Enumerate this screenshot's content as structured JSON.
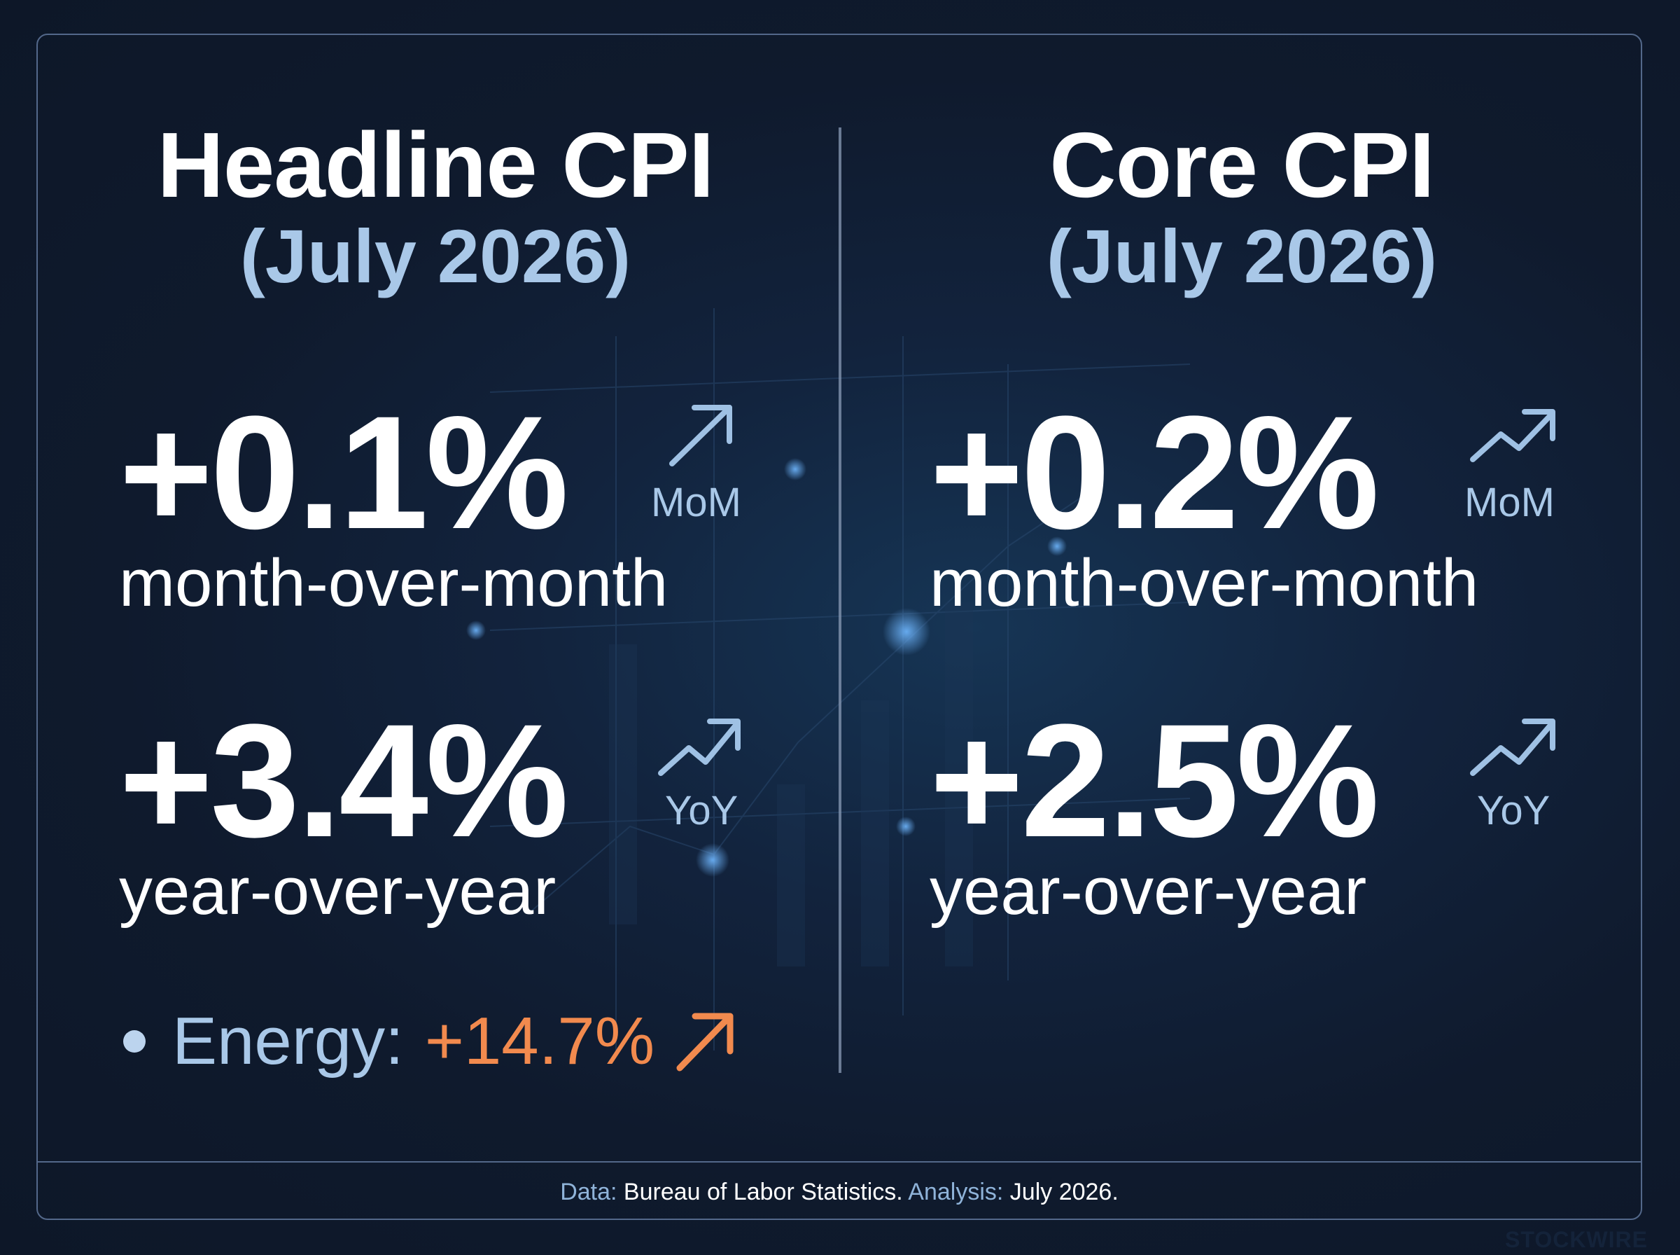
{
  "colors": {
    "background": "#0f1a2d",
    "frame_border": "#53688a",
    "title": "#ffffff",
    "subtitle_blue": "#a9c8e8",
    "energy_orange": "#f28a4e"
  },
  "headline": {
    "title": "Headline CPI",
    "period": "(July 2026)",
    "mom": {
      "value": "+0.1%",
      "label": "month-over-month",
      "tag": "MoM",
      "icon": "arrow-up-right-icon"
    },
    "yoy": {
      "value": "+3.4%",
      "label": "year-over-year",
      "tag": "YoY",
      "icon": "trend-up-icon"
    },
    "energy": {
      "label": "Energy:",
      "value": "+14.7%",
      "icon": "arrow-up-right-icon"
    }
  },
  "core": {
    "title": "Core CPI",
    "period": "(July 2026)",
    "mom": {
      "value": "+0.2%",
      "label": "month-over-month",
      "tag": "MoM",
      "icon": "trend-up-icon"
    },
    "yoy": {
      "value": "+2.5%",
      "label": "year-over-year",
      "tag": "YoY",
      "icon": "trend-up-icon"
    }
  },
  "footer": {
    "data_key": "Data:",
    "data_value": "Bureau of Labor Statistics.",
    "analysis_key": "Analysis:",
    "analysis_value": "July 2026."
  },
  "watermark": "STOCKWIRE"
}
